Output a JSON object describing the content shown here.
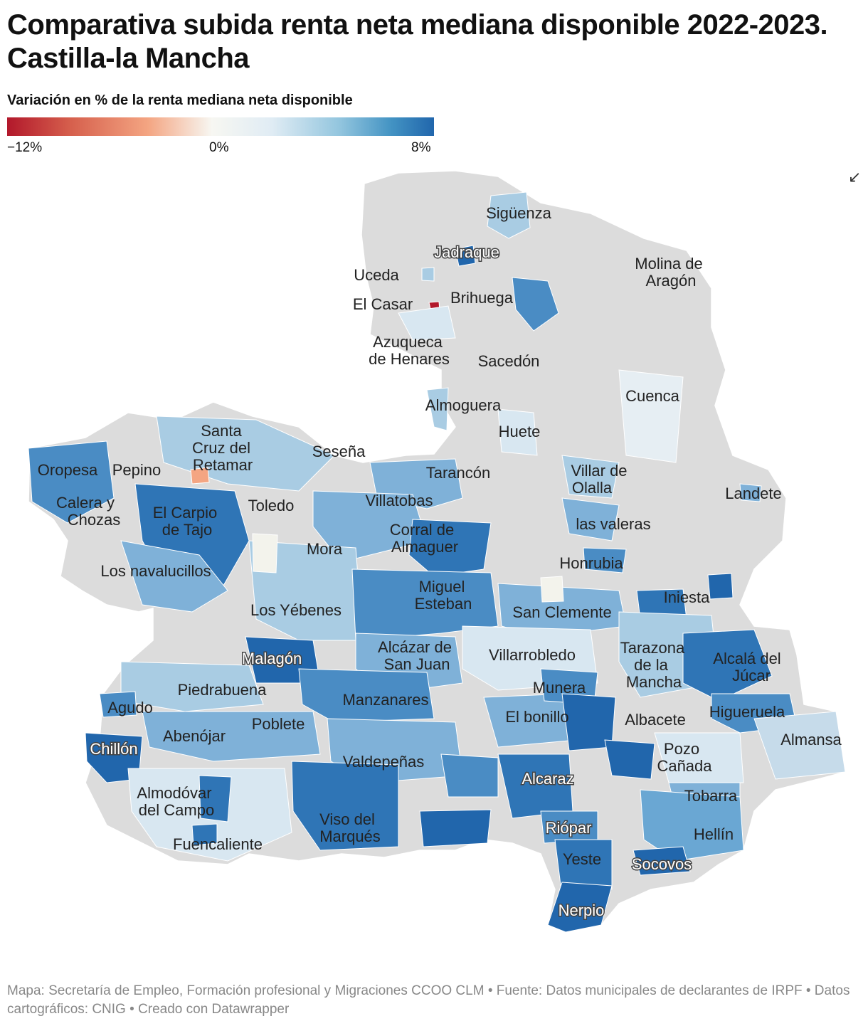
{
  "title": "Comparativa subida renta neta mediana disponible 2022-2023. Castilla-la Mancha",
  "legend": {
    "title": "Variación en % de la renta mediana neta disponible",
    "min_label": "−12%",
    "mid_label": "0%",
    "max_label": "8%",
    "colors": {
      "min": "#b2182b",
      "mid": "#f7f7f2",
      "max": "#2166ac",
      "no_data": "#dcdcdc"
    }
  },
  "map_labels": [
    {
      "text": "Sigüenza",
      "outlined": false
    },
    {
      "text": "Jadraque",
      "outlined": true
    },
    {
      "text": "Molina de",
      "outlined": false
    },
    {
      "text": "Aragón",
      "outlined": false
    },
    {
      "text": "Uceda",
      "outlined": false
    },
    {
      "text": "Brihuega",
      "outlined": false
    },
    {
      "text": "El Casar",
      "outlined": false
    },
    {
      "text": "Azuqueca",
      "outlined": false
    },
    {
      "text": "de Henares",
      "outlined": false
    },
    {
      "text": "Sacedón",
      "outlined": false
    },
    {
      "text": "Cuenca",
      "outlined": false
    },
    {
      "text": "Almoguera",
      "outlined": false
    },
    {
      "text": "Huete",
      "outlined": false
    },
    {
      "text": "Santa",
      "outlined": false
    },
    {
      "text": "Cruz del",
      "outlined": false
    },
    {
      "text": "Retamar",
      "outlined": false
    },
    {
      "text": "Seseña",
      "outlined": false
    },
    {
      "text": "Oropesa",
      "outlined": false
    },
    {
      "text": "Pepino",
      "outlined": false
    },
    {
      "text": "Tarancón",
      "outlined": false
    },
    {
      "text": "Villar de",
      "outlined": false
    },
    {
      "text": "Olalla",
      "outlined": false
    },
    {
      "text": "Landete",
      "outlined": false
    },
    {
      "text": "Calera y",
      "outlined": false
    },
    {
      "text": "Chozas",
      "outlined": false
    },
    {
      "text": "El Carpio",
      "outlined": false
    },
    {
      "text": "de Tajo",
      "outlined": false
    },
    {
      "text": "Toledo",
      "outlined": false
    },
    {
      "text": "Villatobas",
      "outlined": false
    },
    {
      "text": "las valeras",
      "outlined": false
    },
    {
      "text": "Corral de",
      "outlined": false
    },
    {
      "text": "Almaguer",
      "outlined": false
    },
    {
      "text": "Mora",
      "outlined": false
    },
    {
      "text": "Honrubia",
      "outlined": false
    },
    {
      "text": "Los navalucillos",
      "outlined": false
    },
    {
      "text": "Miguel",
      "outlined": false
    },
    {
      "text": "Esteban",
      "outlined": false
    },
    {
      "text": "Iniesta",
      "outlined": false
    },
    {
      "text": "Los Yébenes",
      "outlined": false
    },
    {
      "text": "San Clemente",
      "outlined": false
    },
    {
      "text": "Alcázar de",
      "outlined": false
    },
    {
      "text": "San Juan",
      "outlined": false
    },
    {
      "text": "Villarrobledo",
      "outlined": false
    },
    {
      "text": "Tarazona",
      "outlined": false
    },
    {
      "text": "de la",
      "outlined": false
    },
    {
      "text": "Mancha",
      "outlined": false
    },
    {
      "text": "Malagón",
      "outlined": true
    },
    {
      "text": "Alcalá del",
      "outlined": false
    },
    {
      "text": "Júcar",
      "outlined": false
    },
    {
      "text": "Piedrabuena",
      "outlined": false
    },
    {
      "text": "Munera",
      "outlined": false
    },
    {
      "text": "Manzanares",
      "outlined": false
    },
    {
      "text": "Agudo",
      "outlined": false
    },
    {
      "text": "El bonillo",
      "outlined": false
    },
    {
      "text": "Higueruela",
      "outlined": false
    },
    {
      "text": "Albacete",
      "outlined": false
    },
    {
      "text": "Poblete",
      "outlined": false
    },
    {
      "text": "Abenójar",
      "outlined": false
    },
    {
      "text": "Almansa",
      "outlined": false
    },
    {
      "text": "Chillón",
      "outlined": true
    },
    {
      "text": "Pozo",
      "outlined": false
    },
    {
      "text": "Cañada",
      "outlined": false
    },
    {
      "text": "Valdepeñas",
      "outlined": false
    },
    {
      "text": "Alcaraz",
      "outlined": true
    },
    {
      "text": "Tobarra",
      "outlined": false
    },
    {
      "text": "Almodóvar",
      "outlined": false
    },
    {
      "text": "del Campo",
      "outlined": false
    },
    {
      "text": "Viso del",
      "outlined": false
    },
    {
      "text": "Marqués",
      "outlined": false
    },
    {
      "text": "Riópar",
      "outlined": true
    },
    {
      "text": "Hellín",
      "outlined": false
    },
    {
      "text": "Fuencaliente",
      "outlined": false
    },
    {
      "text": "Yeste",
      "outlined": false
    },
    {
      "text": "Socovos",
      "outlined": true
    },
    {
      "text": "Nerpio",
      "outlined": true
    }
  ],
  "footer": "Mapa: Secretaría de Empleo, Formación profesional y Migraciones CCOO CLM • Fuente: Datos municipales de declarantes de IRPF • Datos cartográficos: CNIG  • Creado con Datawrapper"
}
